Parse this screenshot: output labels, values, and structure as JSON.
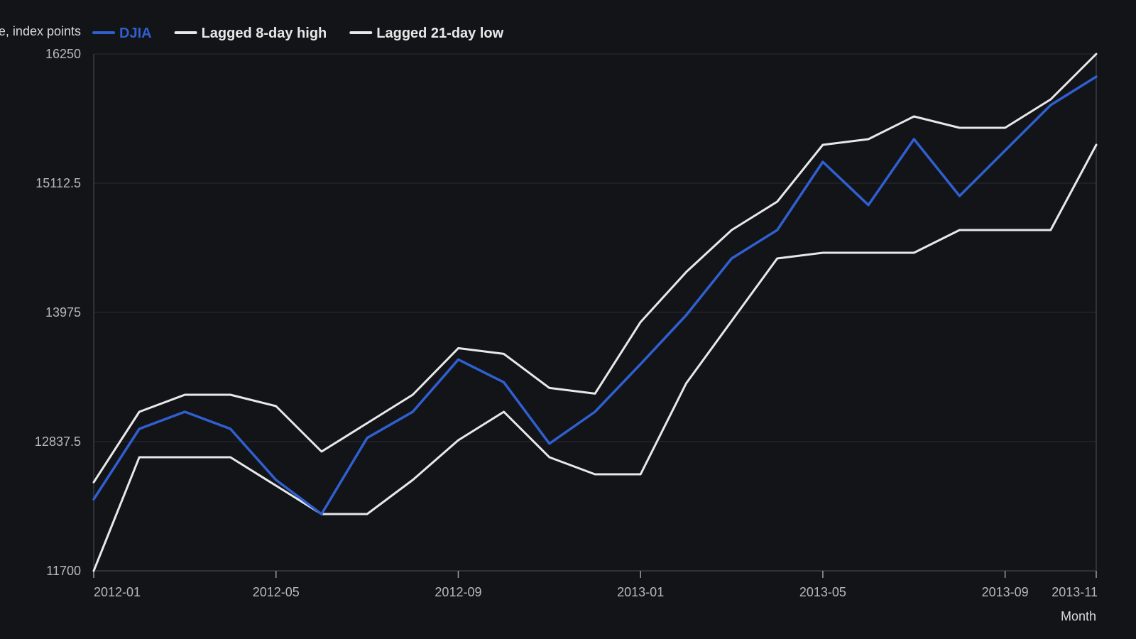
{
  "chart_data": {
    "type": "line",
    "ylabel": "…e, index points",
    "xlabel": "Month",
    "ylim": [
      11700,
      16250
    ],
    "y_ticks": [
      "16250",
      "15112.5",
      "13975",
      "12837.5",
      "11700"
    ],
    "y_tick_values": [
      16250,
      15112.5,
      13975,
      12837.5,
      11700
    ],
    "x_ticks": [
      "2012-01",
      "2012-05",
      "2012-09",
      "2013-01",
      "2013-05",
      "2013-09",
      "2013-11"
    ],
    "x": [
      "2012-01",
      "2012-02",
      "2012-03",
      "2012-04",
      "2012-05",
      "2012-06",
      "2012-07",
      "2012-08",
      "2012-09",
      "2012-10",
      "2012-11",
      "2012-12",
      "2013-01",
      "2013-02",
      "2013-03",
      "2013-04",
      "2013-05",
      "2013-06",
      "2013-07",
      "2013-08",
      "2013-09",
      "2013-10",
      "2013-11"
    ],
    "grid": "horizontal",
    "legend_position": "top-left",
    "series": [
      {
        "name": "DJIA",
        "color": "#2f5fd0",
        "values": [
          12330,
          12950,
          13100,
          12950,
          12500,
          12200,
          12870,
          13100,
          13560,
          13360,
          12820,
          13100,
          13520,
          13950,
          14450,
          14700,
          15300,
          14920,
          15500,
          15000,
          15400,
          15800,
          16050
        ]
      },
      {
        "name": "Lagged 8-day high",
        "color": "#e8e8e8",
        "values": [
          12480,
          13100,
          13250,
          13250,
          13150,
          12750,
          13000,
          13250,
          13660,
          13610,
          13310,
          13260,
          13890,
          14330,
          14700,
          14950,
          15450,
          15500,
          15700,
          15600,
          15600,
          15850,
          16250
        ]
      },
      {
        "name": "Lagged 21-day low",
        "color": "#e8e8e8",
        "values": [
          11700,
          12700,
          12700,
          12700,
          12450,
          12200,
          12200,
          12500,
          12850,
          13100,
          12700,
          12550,
          12550,
          13350,
          13900,
          14450,
          14500,
          14500,
          14500,
          14700,
          14700,
          14700,
          15450
        ]
      }
    ]
  }
}
